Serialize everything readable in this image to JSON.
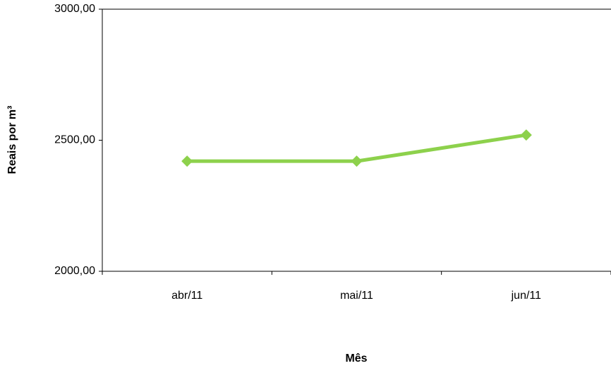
{
  "chart_data": {
    "type": "line",
    "categories": [
      "abr/11",
      "mai/11",
      "jun/11"
    ],
    "series": [
      {
        "name": "Reais por m³",
        "color": "#8dd14c",
        "values": [
          2420,
          2420,
          2520
        ]
      }
    ],
    "ylim": [
      2000,
      3000
    ],
    "yticks": [
      {
        "value": 2000,
        "label": "2000,00"
      },
      {
        "value": 2500,
        "label": "2500,00"
      },
      {
        "value": 3000,
        "label": "3000,00"
      }
    ],
    "x_label": "Mês",
    "y_label": "Reais por  m³",
    "grid": false
  }
}
